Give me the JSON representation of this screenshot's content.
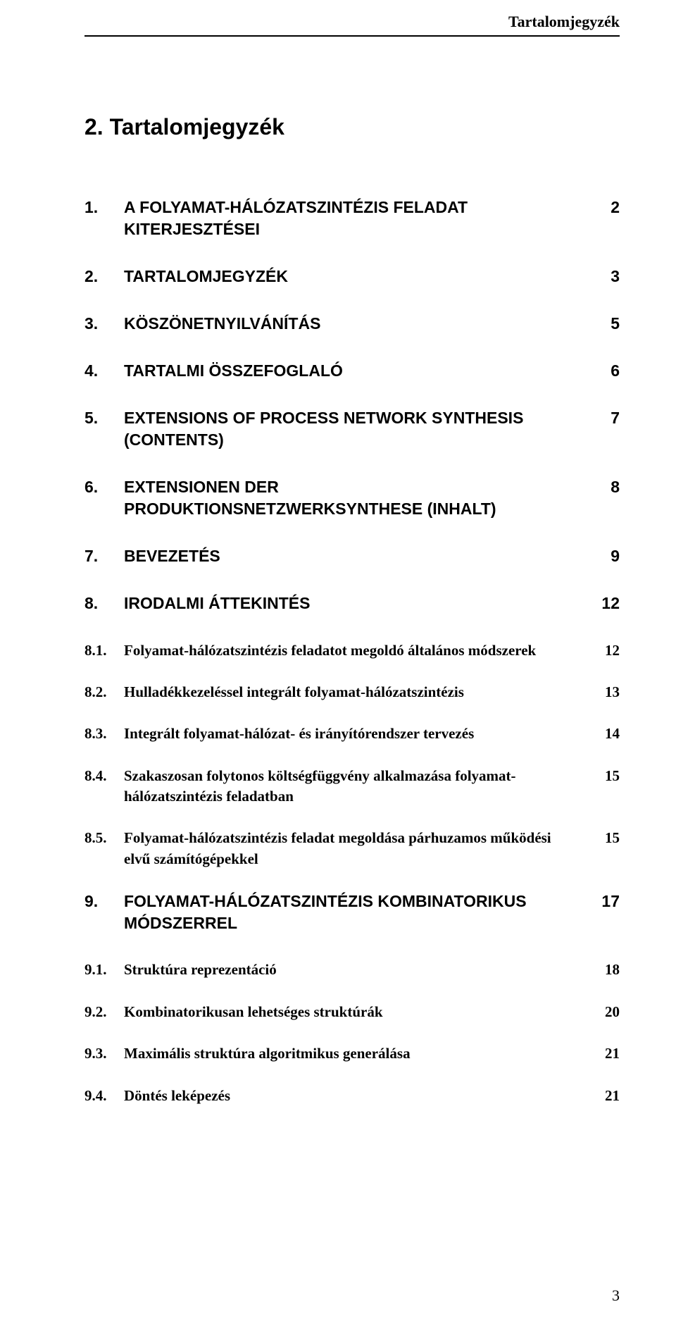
{
  "header": {
    "running_title": "Tartalomjegyzék",
    "main_title": "2. Tartalomjegyzék",
    "page_number": "3"
  },
  "toc": [
    {
      "level": 1,
      "num": "1.",
      "title": "A FOLYAMAT-HÁLÓZATSZINTÉZIS FELADAT KITERJESZTÉSEI",
      "page": "2"
    },
    {
      "level": 1,
      "num": "2.",
      "title": "TARTALOMJEGYZÉK",
      "page": "3"
    },
    {
      "level": 1,
      "num": "3.",
      "title": "KÖSZÖNETNYILVÁNÍTÁS",
      "page": "5"
    },
    {
      "level": 1,
      "num": "4.",
      "title": "TARTALMI ÖSSZEFOGLALÓ",
      "page": "6"
    },
    {
      "level": 1,
      "num": "5.",
      "title": "EXTENSIONS OF PROCESS NETWORK SYNTHESIS (CONTENTS)",
      "page": "7"
    },
    {
      "level": 1,
      "num": "6.",
      "title": "EXTENSIONEN DER PRODUKTIONSNETZWERKSYNTHESE (INHALT)",
      "page": "8"
    },
    {
      "level": 1,
      "num": "7.",
      "title": "BEVEZETÉS",
      "page": "9"
    },
    {
      "level": 1,
      "num": "8.",
      "title": "IRODALMI ÁTTEKINTÉS",
      "page": "12"
    },
    {
      "level": 2,
      "num": "8.1.",
      "title": "Folyamat-hálózatszintézis feladatot megoldó általános módszerek",
      "page": "12"
    },
    {
      "level": 2,
      "num": "8.2.",
      "title": "Hulladékkezeléssel integrált folyamat-hálózatszintézis",
      "page": "13"
    },
    {
      "level": 2,
      "num": "8.3.",
      "title": "Integrált folyamat-hálózat- és irányítórendszer tervezés",
      "page": "14"
    },
    {
      "level": 2,
      "num": "8.4.",
      "title": "Szakaszosan folytonos költségfüggvény alkalmazása folyamat-hálózatszintézis feladatban",
      "page": "15"
    },
    {
      "level": 2,
      "num": "8.5.",
      "title": "Folyamat-hálózatszintézis feladat megoldása párhuzamos működési elvű számítógépekkel",
      "page": "15"
    },
    {
      "level": 1,
      "num": "9.",
      "title": "FOLYAMAT-HÁLÓZATSZINTÉZIS KOMBINATORIKUS MÓDSZERREL",
      "page": "17"
    },
    {
      "level": 2,
      "num": "9.1.",
      "title": "Struktúra reprezentáció",
      "page": "18"
    },
    {
      "level": 2,
      "num": "9.2.",
      "title": "Kombinatorikusan lehetséges struktúrák",
      "page": "20"
    },
    {
      "level": 2,
      "num": "9.3.",
      "title": "Maximális struktúra algoritmikus generálása",
      "page": "21"
    },
    {
      "level": 2,
      "num": "9.4.",
      "title": "Döntés leképezés",
      "page": "21"
    }
  ],
  "style": {
    "background_color": "#ffffff",
    "text_color": "#000000",
    "lvl1_fontsize_pt": 17,
    "lvl2_fontsize_pt": 16,
    "header_fontsize_pt": 16,
    "main_title_fontsize_pt": 24,
    "lvl1_font": "Arial",
    "lvl2_font": "Times New Roman"
  }
}
